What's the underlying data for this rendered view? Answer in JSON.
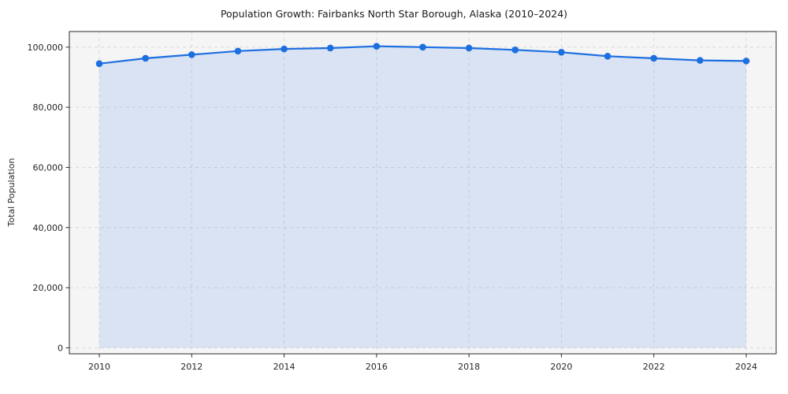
{
  "chart_data": {
    "type": "line",
    "title": "Population Growth: Fairbanks North Star Borough, Alaska (2010–2024)",
    "xlabel": "",
    "ylabel": "Total Population",
    "x": [
      2010,
      2011,
      2012,
      2013,
      2014,
      2015,
      2016,
      2017,
      2018,
      2019,
      2020,
      2021,
      2022,
      2023,
      2024
    ],
    "series": [
      {
        "name": "Total Population",
        "values": [
          94500,
          96300,
          97500,
          98700,
          99400,
          99700,
          100300,
          100000,
          99700,
          99100,
          98300,
          97000,
          96300,
          95600,
          95400
        ]
      }
    ],
    "xticks": [
      2010,
      2012,
      2014,
      2016,
      2018,
      2020,
      2022,
      2024
    ],
    "yticks": [
      0,
      20000,
      40000,
      60000,
      80000,
      100000
    ],
    "ylim": [
      -2000,
      105200
    ],
    "grid": true,
    "legend": false,
    "line_color": "#1d6fe0",
    "marker_color": "#1d6fe0",
    "fill_color": "rgba(29, 111, 224, 0.13)",
    "plot_bg": "#f5f5f6",
    "grid_color": "#d9d9d9",
    "spine_color": "#2b2b2b"
  }
}
